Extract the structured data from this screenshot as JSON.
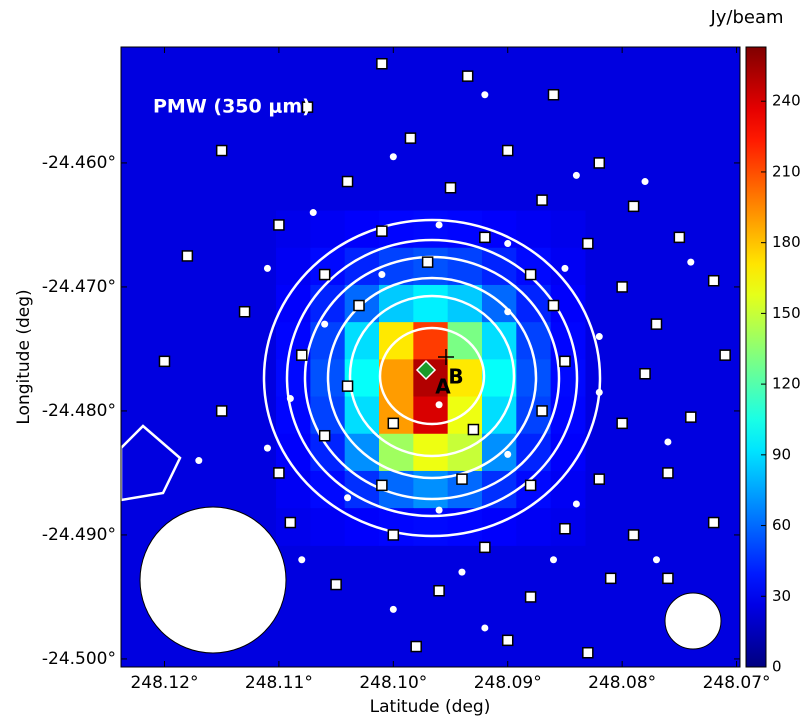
{
  "chart_data": {
    "type": "heatmap",
    "title": "PMW (350 μm)",
    "x_label": "Latitude (deg)",
    "y_label": "Longitude (deg)",
    "colorbar_label": "Jy/beam",
    "colormap": "jet",
    "clim": [
      0,
      263
    ],
    "cticks": [
      0,
      30,
      60,
      90,
      120,
      150,
      180,
      210,
      240
    ],
    "xlim": [
      248.1238,
      248.0697
    ],
    "ylim": [
      -24.50065,
      -24.45065
    ],
    "xticks": [
      {
        "value": 248.12,
        "label": "248.12°"
      },
      {
        "value": 248.11,
        "label": "248.11°"
      },
      {
        "value": 248.1,
        "label": "248.10°"
      },
      {
        "value": 248.09,
        "label": "248.09°"
      },
      {
        "value": 248.08,
        "label": "248.08°"
      },
      {
        "value": 248.07,
        "label": "248.07°"
      }
    ],
    "yticks": [
      {
        "value": -24.46,
        "label": "-24.460°"
      },
      {
        "value": -24.47,
        "label": "-24.470°"
      },
      {
        "value": -24.48,
        "label": "-24.480°"
      },
      {
        "value": -24.49,
        "label": "-24.490°"
      },
      {
        "value": -24.5,
        "label": "-24.500°"
      }
    ],
    "background": 25,
    "z_xlim": [
      248.11025,
      248.08325
    ],
    "z_ylim": [
      -24.49084,
      -24.46384
    ],
    "z": [
      [
        28,
        30,
        32,
        34,
        35,
        34,
        32,
        30,
        28
      ],
      [
        30,
        35,
        42,
        50,
        54,
        50,
        42,
        35,
        30
      ],
      [
        32,
        42,
        60,
        85,
        95,
        85,
        60,
        42,
        32
      ],
      [
        34,
        50,
        90,
        170,
        215,
        130,
        90,
        50,
        34
      ],
      [
        35,
        54,
        100,
        190,
        250,
        170,
        100,
        54,
        35
      ],
      [
        34,
        50,
        90,
        190,
        240,
        160,
        90,
        50,
        34
      ],
      [
        32,
        42,
        70,
        140,
        160,
        150,
        70,
        42,
        32
      ],
      [
        30,
        35,
        45,
        60,
        70,
        60,
        45,
        35,
        30
      ],
      [
        28,
        30,
        32,
        34,
        35,
        34,
        32,
        30,
        28
      ]
    ],
    "annotations": [
      "A",
      "B"
    ],
    "points": [
      {
        "marker": "square",
        "x": [
          248.101,
          248.0935,
          248.086,
          248.1075,
          248.0985,
          248.09,
          248.082,
          248.115,
          248.104,
          248.095,
          248.087,
          248.079,
          248.11,
          248.101,
          248.092,
          248.083,
          248.075,
          248.118,
          248.106,
          248.097,
          248.088,
          248.08,
          248.072,
          248.113,
          248.103,
          248.086,
          248.077,
          248.12,
          248.108,
          248.104,
          248.085,
          248.078,
          248.071,
          248.115,
          248.106,
          248.1,
          248.093,
          248.087,
          248.08,
          248.074,
          248.11,
          248.101,
          248.094,
          248.088,
          248.082,
          248.076,
          248.109,
          248.1,
          248.092,
          248.085,
          248.079,
          248.072,
          248.105,
          248.096,
          248.088,
          248.081,
          248.076,
          248.098,
          248.09,
          248.083
        ],
        "y": [
          -24.452,
          -24.453,
          -24.4545,
          -24.4555,
          -24.458,
          -24.459,
          -24.46,
          -24.459,
          -24.4615,
          -24.462,
          -24.463,
          -24.4635,
          -24.465,
          -24.4655,
          -24.466,
          -24.4665,
          -24.466,
          -24.4675,
          -24.469,
          -24.468,
          -24.469,
          -24.47,
          -24.4695,
          -24.472,
          -24.4715,
          -24.4715,
          -24.473,
          -24.476,
          -24.4755,
          -24.478,
          -24.476,
          -24.477,
          -24.4755,
          -24.48,
          -24.482,
          -24.481,
          -24.4815,
          -24.48,
          -24.481,
          -24.4805,
          -24.485,
          -24.486,
          -24.4855,
          -24.486,
          -24.4855,
          -24.485,
          -24.489,
          -24.49,
          -24.491,
          -24.4895,
          -24.49,
          -24.489,
          -24.494,
          -24.4945,
          -24.495,
          -24.4935,
          -24.4935,
          -24.499,
          -24.4985,
          -24.4995
        ]
      },
      {
        "marker": "dot",
        "x": [
          248.092,
          248.1,
          248.084,
          248.078,
          248.107,
          248.096,
          248.09,
          248.111,
          248.101,
          248.085,
          248.074,
          248.106,
          248.09,
          248.082,
          248.109,
          248.096,
          248.082,
          248.111,
          248.09,
          248.076,
          248.104,
          248.096,
          248.084,
          248.108,
          248.094,
          248.086,
          248.077,
          248.1,
          248.092,
          248.117
        ],
        "y": [
          -24.4545,
          -24.4595,
          -24.461,
          -24.4615,
          -24.464,
          -24.465,
          -24.4665,
          -24.4685,
          -24.469,
          -24.4685,
          -24.468,
          -24.473,
          -24.472,
          -24.474,
          -24.479,
          -24.4795,
          -24.4785,
          -24.483,
          -24.4835,
          -24.4825,
          -24.487,
          -24.488,
          -24.4875,
          -24.492,
          -24.493,
          -24.492,
          -24.492,
          -24.496,
          -24.4975,
          -24.484
        ]
      }
    ]
  }
}
